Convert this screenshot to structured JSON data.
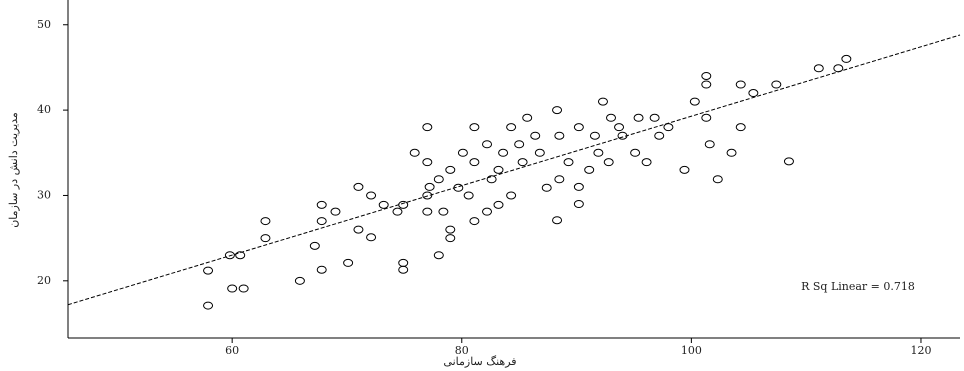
{
  "chart_data": {
    "type": "scatter",
    "x_label": "فرهنگ سازمانی",
    "y_label": "مدیریت دانش در سازمان",
    "annotation": "R Sq Linear = 0.718",
    "color": "#000000",
    "x": [
      57.9,
      57.9,
      59.8,
      60.7,
      60,
      61,
      62.9,
      62.9,
      65.9,
      67.2,
      67.8,
      67.8,
      67.8,
      69,
      70.1,
      71,
      71,
      72.1,
      72.1,
      74.9,
      74.9,
      74.9,
      75.9,
      77,
      77,
      77,
      77,
      78,
      79,
      79,
      79,
      78,
      79.7,
      80.1,
      81.1,
      81.1,
      82.2,
      83.2,
      83.2,
      84.3,
      85.3,
      86.4,
      87.4,
      88.3,
      88.3,
      89.3,
      90.2,
      90.2,
      90.2,
      91.1,
      91.9,
      92.3,
      93,
      94,
      95.1,
      96.1,
      96.8,
      98,
      99.4,
      100.3,
      101.3,
      101.3,
      101.6,
      102.3,
      103.5,
      104.3,
      104.3,
      105.4,
      107.4,
      108.5,
      111.1,
      112.8,
      113.5,
      101.3,
      82.6,
      85,
      88.5,
      86.8,
      93.7,
      95.4,
      80.6,
      82.2,
      78.4,
      73.2,
      74.4,
      84.3,
      85.7,
      91.6,
      92.8,
      97.2,
      83.6,
      88.5,
      81.1,
      77.2
    ],
    "values": [
      17.1,
      21.2,
      23,
      23,
      19.1,
      19.1,
      27,
      25,
      20,
      24.1,
      21.3,
      27,
      28.9,
      28.1,
      22.1,
      26,
      31,
      25.1,
      30,
      22.1,
      21.3,
      28.9,
      35,
      38,
      33.9,
      30,
      28.1,
      23,
      25,
      26,
      33,
      31.9,
      30.9,
      35,
      38,
      27,
      36,
      28.9,
      33,
      30,
      33.9,
      37,
      30.9,
      27.1,
      40,
      33.9,
      29,
      31,
      38,
      33,
      35,
      41,
      39.1,
      37,
      35,
      33.9,
      39.1,
      38,
      33,
      41,
      43,
      39.1,
      36,
      31.9,
      35,
      43,
      38,
      42,
      43,
      34,
      44.9,
      44.9,
      46,
      44,
      31.9,
      36,
      37,
      35,
      38,
      39.1,
      30,
      28.1,
      28.1,
      28.9,
      28.1,
      38,
      39.1,
      37,
      33.9,
      37,
      35,
      31.9,
      33.9,
      31
    ],
    "fit_line": {
      "x": [
        45.7,
        123.4
      ],
      "y": [
        17.2,
        48.8
      ]
    },
    "xlim": [
      45.7,
      123.4
    ],
    "ylim": [
      13.3,
      52.9
    ],
    "xticks": [
      60,
      80,
      100,
      120
    ],
    "yticks": [
      20,
      30,
      40,
      50
    ]
  }
}
